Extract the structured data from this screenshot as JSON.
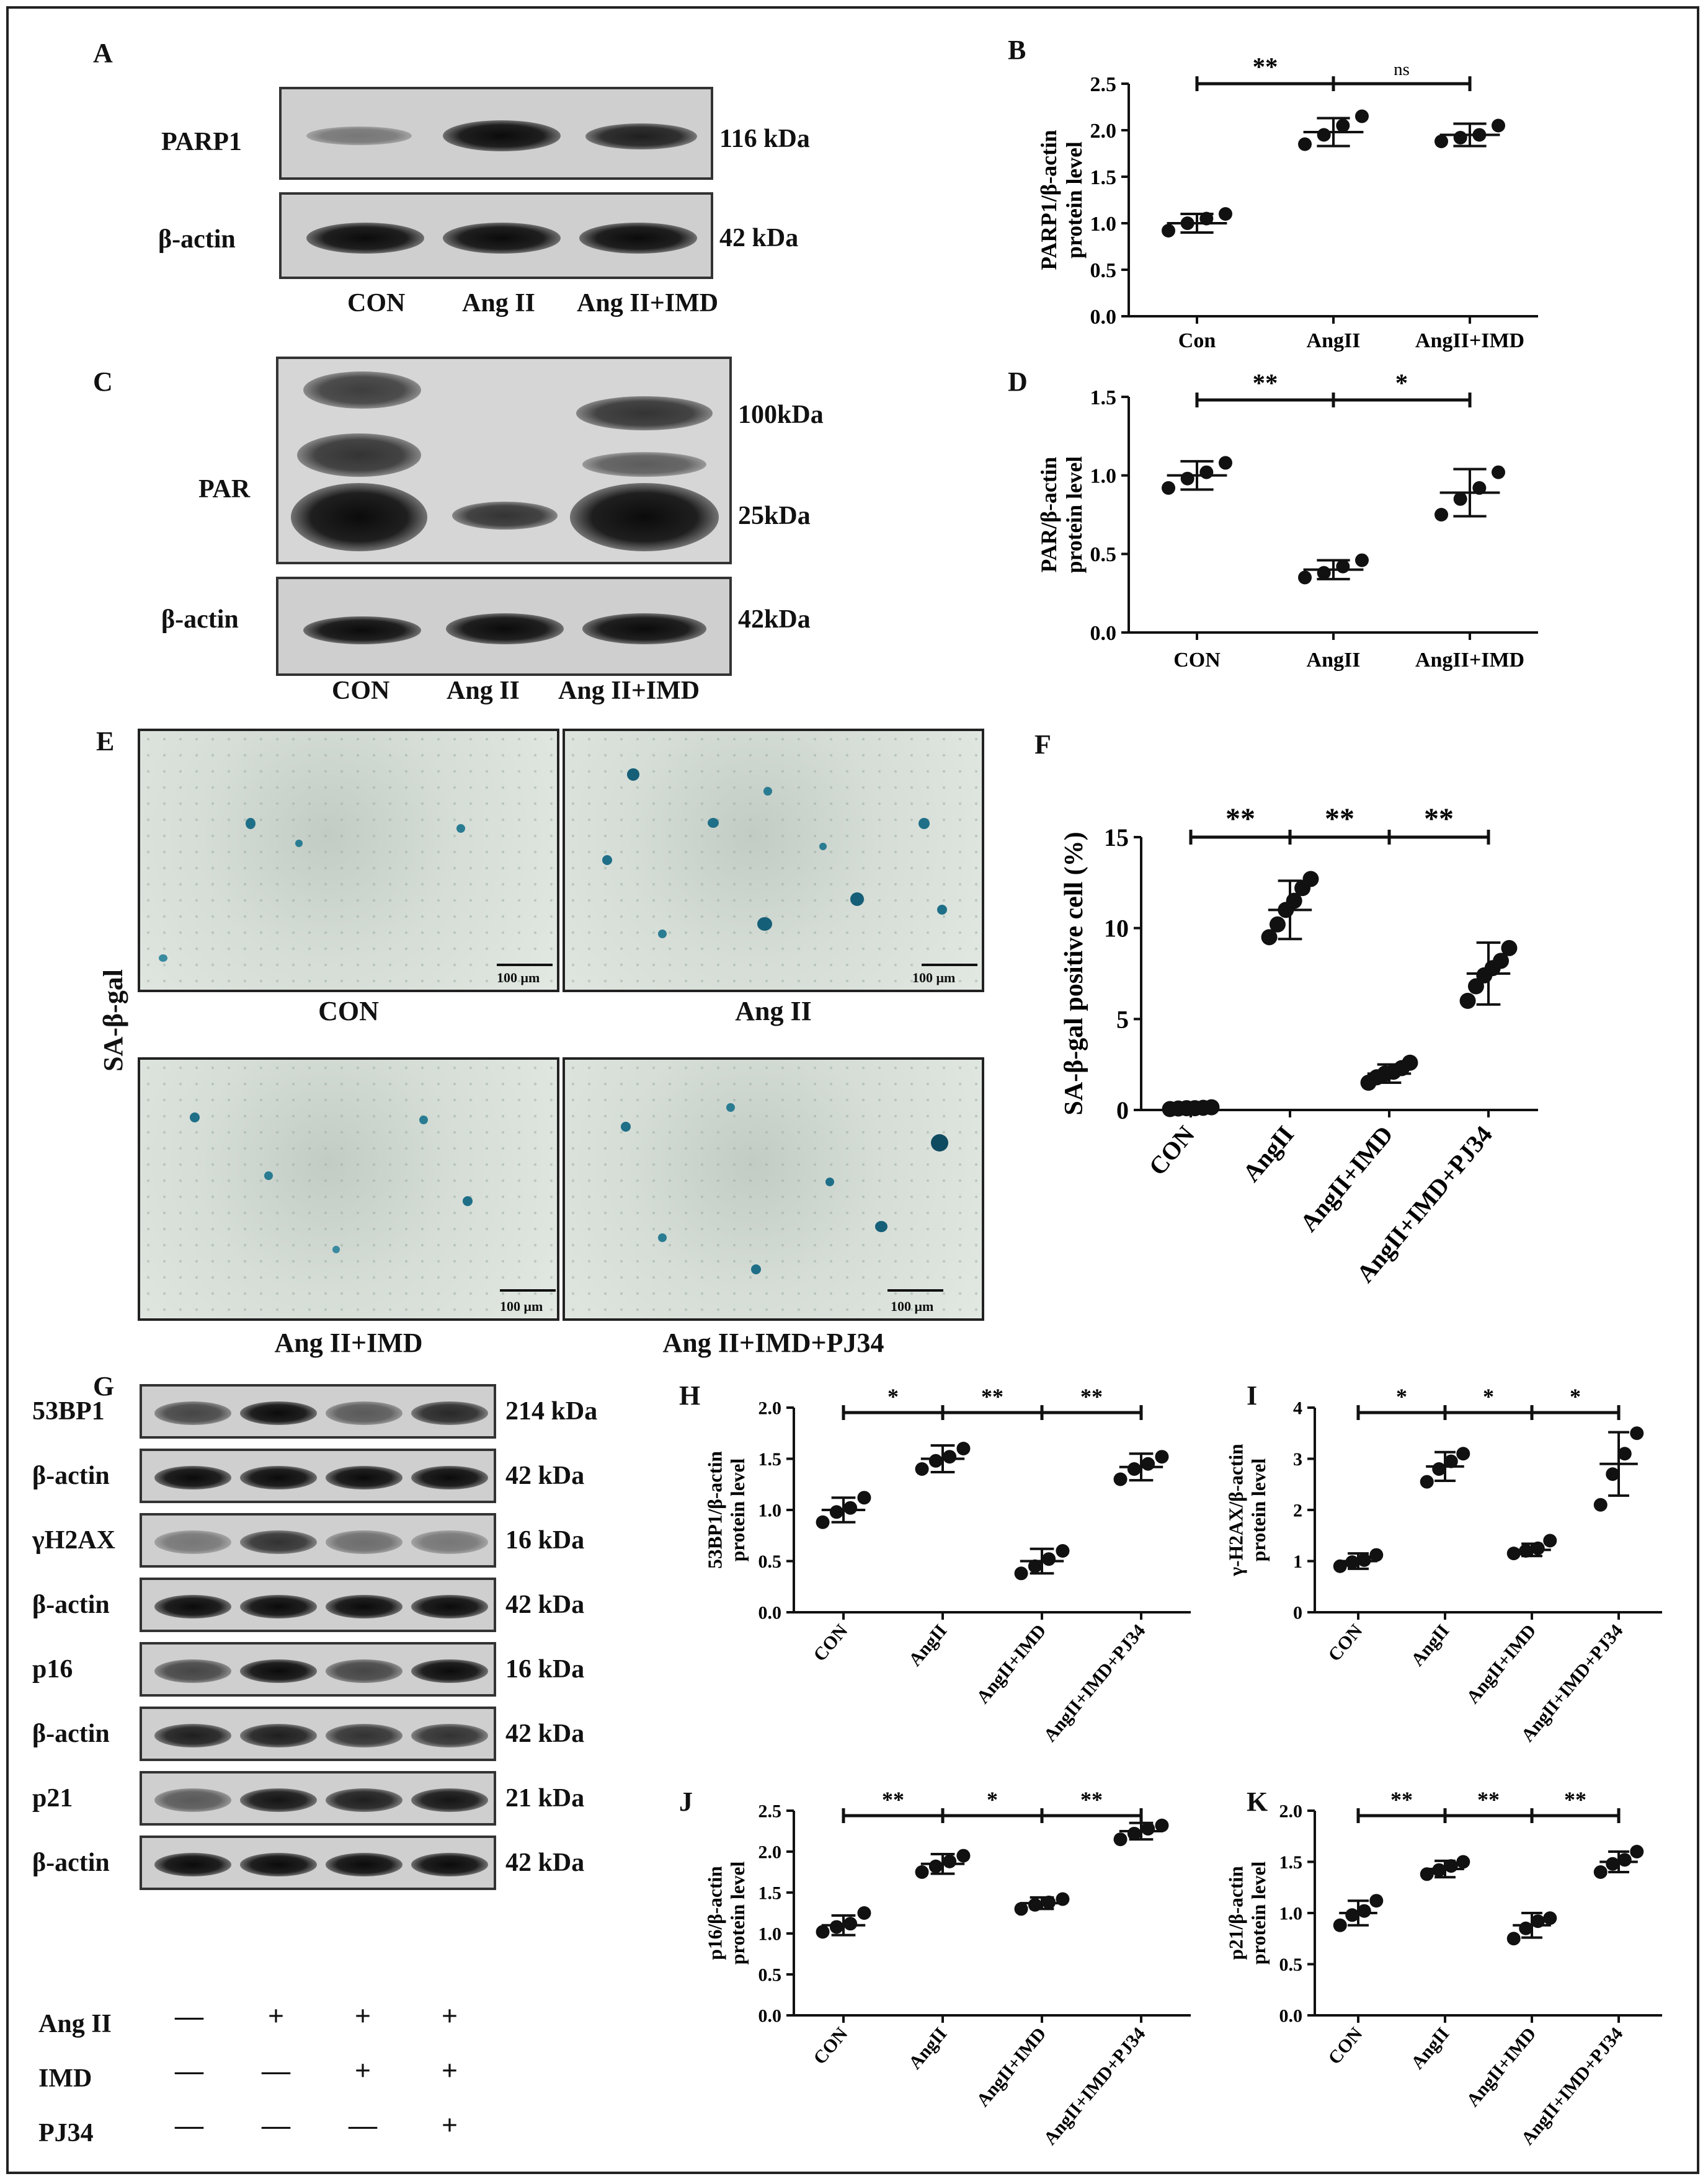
{
  "panels": {
    "A": {
      "letter": "A",
      "rows": [
        {
          "label": "PARP1",
          "kda": "116 kDa"
        },
        {
          "label": "β-actin",
          "kda": "42 kDa"
        }
      ],
      "lanes": [
        "CON",
        "Ang II",
        "Ang II+IMD"
      ]
    },
    "C": {
      "letter": "C",
      "row_label": "PAR",
      "kda_markers": [
        "100kDa",
        "25kDa"
      ],
      "actin": {
        "label": "β-actin",
        "kda": "42kDa"
      },
      "lanes": [
        "CON",
        "Ang II",
        "Ang II+IMD"
      ]
    },
    "E": {
      "letter": "E",
      "side_label": "SA-β-gal",
      "images": [
        "CON",
        "Ang II",
        "Ang II+IMD",
        "Ang II+IMD+PJ34"
      ],
      "scale_bar": "100 μm"
    },
    "G": {
      "letter": "G",
      "rows": [
        {
          "label": "53BP1",
          "kda": "214 kDa"
        },
        {
          "label": "β-actin",
          "kda": "42 kDa"
        },
        {
          "label": "γH2AX",
          "kda": "16 kDa"
        },
        {
          "label": "β-actin",
          "kda": "42 kDa"
        },
        {
          "label": "p16",
          "kda": "16 kDa"
        },
        {
          "label": "β-actin",
          "kda": "42 kDa"
        },
        {
          "label": "p21",
          "kda": "21 kDa"
        },
        {
          "label": "β-actin",
          "kda": "42 kDa"
        }
      ],
      "treatments": [
        {
          "label": "Ang II",
          "marks": [
            "—",
            "+",
            "+",
            "+"
          ]
        },
        {
          "label": "IMD",
          "marks": [
            "—",
            "—",
            "+",
            "+"
          ]
        },
        {
          "label": "PJ34",
          "marks": [
            "—",
            "—",
            "—",
            "+"
          ]
        }
      ]
    }
  },
  "chart_data": [
    {
      "panel": "B",
      "type": "scatter",
      "categories": [
        "Con",
        "AngII",
        "AngII+IMD"
      ],
      "ylabel": "PARP1/β-actin protein level",
      "ylim": [
        0,
        2.5
      ],
      "yticks": [
        "0.0",
        "0.5",
        "1.0",
        "1.5",
        "2.0",
        "2.5"
      ],
      "points": [
        [
          0.92,
          1.0,
          1.05,
          1.1
        ],
        [
          1.85,
          1.95,
          2.05,
          2.15
        ],
        [
          1.88,
          1.92,
          1.95,
          2.05
        ]
      ],
      "mean": [
        1.0,
        1.98,
        1.95
      ],
      "sd": [
        0.1,
        0.15,
        0.12
      ],
      "significance": [
        {
          "from": 0,
          "to": 1,
          "text": "**"
        },
        {
          "from": 1,
          "to": 2,
          "text": "ns"
        }
      ]
    },
    {
      "panel": "D",
      "type": "scatter",
      "categories": [
        "CON",
        "AngII",
        "AngII+IMD"
      ],
      "ylabel": "PAR/β-actin protein level",
      "ylim": [
        0,
        1.5
      ],
      "yticks": [
        "0.0",
        "0.5",
        "1.0",
        "1.5"
      ],
      "points": [
        [
          0.92,
          0.98,
          1.02,
          1.08
        ],
        [
          0.35,
          0.38,
          0.42,
          0.46
        ],
        [
          0.75,
          0.85,
          0.92,
          1.02
        ]
      ],
      "mean": [
        1.0,
        0.4,
        0.89
      ],
      "sd": [
        0.09,
        0.06,
        0.15
      ],
      "significance": [
        {
          "from": 0,
          "to": 1,
          "text": "**"
        },
        {
          "from": 1,
          "to": 2,
          "text": "*"
        }
      ]
    },
    {
      "panel": "F",
      "type": "scatter",
      "categories": [
        "CON",
        "AngII",
        "AngII+IMD",
        "AngII+IMD+PJ34"
      ],
      "ylabel": "SA-β-gal positive cell (%)",
      "ylim": [
        0,
        15
      ],
      "yticks": [
        "0",
        "5",
        "10",
        "15"
      ],
      "points": [
        [
          0.05,
          0.08,
          0.1,
          0.1,
          0.12,
          0.15
        ],
        [
          9.5,
          10.2,
          11.0,
          11.5,
          12.2,
          12.7
        ],
        [
          1.5,
          1.8,
          2.0,
          2.1,
          2.3,
          2.6
        ],
        [
          6.0,
          6.8,
          7.4,
          7.8,
          8.2,
          8.9
        ]
      ],
      "mean": [
        0.1,
        11.0,
        2.0,
        7.5
      ],
      "sd": [
        0.05,
        1.6,
        0.5,
        1.7
      ],
      "significance": [
        {
          "from": 0,
          "to": 1,
          "text": "**"
        },
        {
          "from": 1,
          "to": 2,
          "text": "**"
        },
        {
          "from": 2,
          "to": 3,
          "text": "**"
        }
      ]
    },
    {
      "panel": "H",
      "type": "scatter",
      "categories": [
        "CON",
        "AngII",
        "AngII+IMD",
        "AngII+IMD+PJ34"
      ],
      "ylabel": "53BP1/β-actin protein level",
      "ylim": [
        0,
        2.0
      ],
      "yticks": [
        "0.0",
        "0.5",
        "1.0",
        "1.5",
        "2.0"
      ],
      "points": [
        [
          0.88,
          0.98,
          1.02,
          1.12
        ],
        [
          1.4,
          1.48,
          1.52,
          1.6
        ],
        [
          0.38,
          0.45,
          0.52,
          0.6
        ],
        [
          1.3,
          1.4,
          1.45,
          1.52
        ]
      ],
      "mean": [
        1.0,
        1.5,
        0.5,
        1.42
      ],
      "sd": [
        0.12,
        0.13,
        0.12,
        0.13
      ],
      "significance": [
        {
          "from": 0,
          "to": 1,
          "text": "*"
        },
        {
          "from": 1,
          "to": 2,
          "text": "**"
        },
        {
          "from": 2,
          "to": 3,
          "text": "**"
        }
      ]
    },
    {
      "panel": "I",
      "type": "scatter",
      "categories": [
        "CON",
        "AngII",
        "AngII+IMD",
        "AngII+IMD+PJ34"
      ],
      "ylabel": "γ-H2AX/β-actin protein level",
      "ylim": [
        0,
        4
      ],
      "yticks": [
        "0",
        "1",
        "2",
        "3",
        "4"
      ],
      "points": [
        [
          0.9,
          0.98,
          1.02,
          1.12
        ],
        [
          2.55,
          2.8,
          2.95,
          3.1
        ],
        [
          1.15,
          1.2,
          1.25,
          1.4
        ],
        [
          2.1,
          2.7,
          3.1,
          3.5
        ]
      ],
      "mean": [
        1.0,
        2.85,
        1.22,
        2.9
      ],
      "sd": [
        0.15,
        0.28,
        0.12,
        0.62
      ],
      "significance": [
        {
          "from": 0,
          "to": 1,
          "text": "*"
        },
        {
          "from": 1,
          "to": 2,
          "text": "*"
        },
        {
          "from": 2,
          "to": 3,
          "text": "*"
        }
      ]
    },
    {
      "panel": "J",
      "type": "scatter",
      "categories": [
        "CON",
        "AngII",
        "AngII+IMD",
        "AngII+IMD+PJ34"
      ],
      "ylabel": "p16/β-actin protein level",
      "ylim": [
        0,
        2.5
      ],
      "yticks": [
        "0.0",
        "0.5",
        "1.0",
        "1.5",
        "2.0",
        "2.5"
      ],
      "points": [
        [
          1.02,
          1.08,
          1.12,
          1.25
        ],
        [
          1.75,
          1.82,
          1.88,
          1.95
        ],
        [
          1.3,
          1.35,
          1.38,
          1.42
        ],
        [
          2.15,
          2.22,
          2.28,
          2.32
        ]
      ],
      "mean": [
        1.1,
        1.85,
        1.37,
        2.25
      ],
      "sd": [
        0.12,
        0.12,
        0.07,
        0.1
      ],
      "significance": [
        {
          "from": 0,
          "to": 1,
          "text": "**"
        },
        {
          "from": 1,
          "to": 2,
          "text": "*"
        },
        {
          "from": 2,
          "to": 3,
          "text": "**"
        }
      ]
    },
    {
      "panel": "K",
      "type": "scatter",
      "categories": [
        "CON",
        "AngII",
        "AngII+IMD",
        "AngII+IMD+PJ34"
      ],
      "ylabel": "p21/β-actin protein level",
      "ylim": [
        0,
        2.0
      ],
      "yticks": [
        "0.0",
        "0.5",
        "1.0",
        "1.5",
        "2.0"
      ],
      "points": [
        [
          0.88,
          0.98,
          1.02,
          1.12
        ],
        [
          1.38,
          1.42,
          1.46,
          1.5
        ],
        [
          0.75,
          0.85,
          0.92,
          0.95
        ],
        [
          1.4,
          1.48,
          1.52,
          1.6
        ]
      ],
      "mean": [
        1.0,
        1.43,
        0.88,
        1.5
      ],
      "sd": [
        0.12,
        0.08,
        0.12,
        0.1
      ],
      "significance": [
        {
          "from": 0,
          "to": 1,
          "text": "**"
        },
        {
          "from": 1,
          "to": 2,
          "text": "**"
        },
        {
          "from": 2,
          "to": 3,
          "text": "**"
        }
      ]
    }
  ],
  "colors": {
    "ink": "#111111",
    "stain": "#1f6f88"
  }
}
